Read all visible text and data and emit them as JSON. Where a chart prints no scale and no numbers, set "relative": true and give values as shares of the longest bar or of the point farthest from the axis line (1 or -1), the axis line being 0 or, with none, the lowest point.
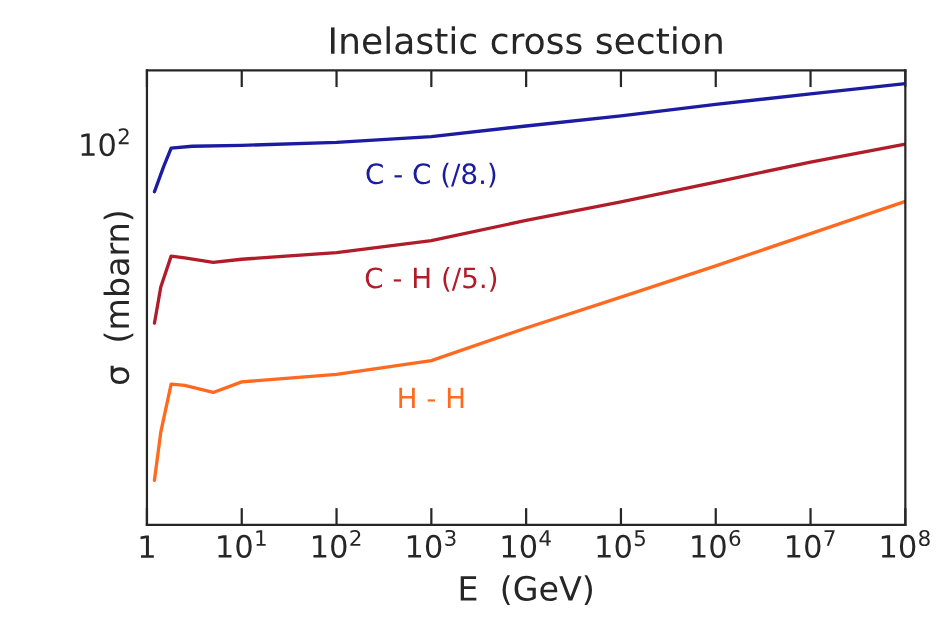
{
  "chart_data": {
    "type": "line",
    "title": "Inelastic cross section",
    "xlabel": "E  (GeV)",
    "ylabel": "σ  (mbarn)",
    "log": "x",
    "relative": true,
    "annotations": [
      "10$^{2}$"
    ],
    "xlim": [
      1,
      100000000
    ],
    "xticks": [
      {
        "value": 1,
        "label": "1"
      },
      {
        "value": 10,
        "label": "10$^{1}$"
      },
      {
        "value": 100,
        "label": "10$^{2}$"
      },
      {
        "value": 1000,
        "label": "10$^{3}$"
      },
      {
        "value": 10000,
        "label": "10$^{4}$"
      },
      {
        "value": 100000,
        "label": "10$^{5}$"
      },
      {
        "value": 1000000,
        "label": "10$^{6}$"
      },
      {
        "value": 10000000,
        "label": "10$^{7}$"
      },
      {
        "value": 100000000,
        "label": "10$^{8}$"
      }
    ],
    "grid": false,
    "legend": false,
    "marker": "none",
    "line_style": "solid",
    "series": [
      {
        "name": "C - C (/8.)",
        "color": "#1c1ca0",
        "x": [
          1.2,
          1.5,
          1.8,
          3,
          10,
          100,
          1000,
          10000,
          100000,
          1000000,
          10000000,
          100000000
        ],
        "values": [
          0.755,
          0.812,
          0.854,
          0.858,
          0.86,
          0.867,
          0.88,
          0.904,
          0.927,
          0.953,
          0.977,
          1
        ]
      },
      {
        "name": "C - H (/5.)",
        "color": "#b01c2a",
        "x": [
          1.2,
          1.4,
          1.8,
          2.5,
          5,
          10,
          100,
          1000,
          10000,
          100000,
          1000000,
          10000000,
          100000000
        ],
        "values": [
          0.457,
          0.539,
          0.609,
          0.605,
          0.595,
          0.602,
          0.617,
          0.644,
          0.69,
          0.732,
          0.777,
          0.822,
          0.863
        ]
      },
      {
        "name": "H - H",
        "color": "#ff6a20",
        "x": [
          1.2,
          1.4,
          1.8,
          2.5,
          5,
          10,
          100,
          1000,
          10000,
          100000,
          1000000,
          10000000,
          100000000
        ],
        "values": [
          0.101,
          0.21,
          0.319,
          0.316,
          0.3,
          0.324,
          0.341,
          0.372,
          0.446,
          0.516,
          0.587,
          0.66,
          0.733
        ]
      }
    ]
  }
}
